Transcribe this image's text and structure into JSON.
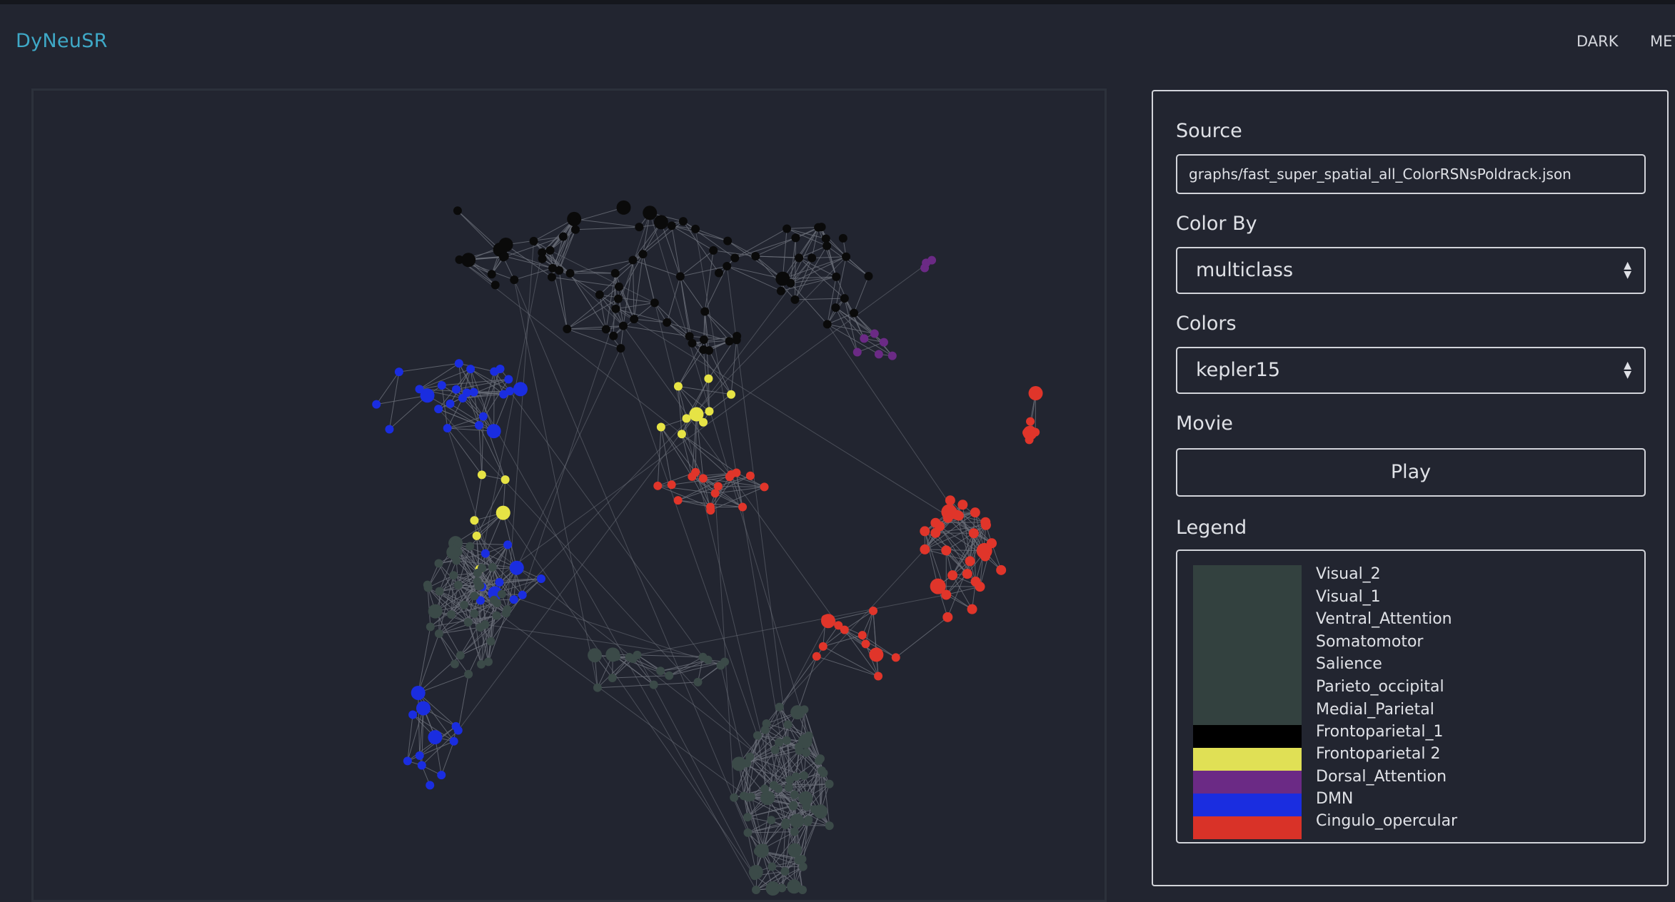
{
  "app": {
    "title": "DyNeuSR"
  },
  "nav": {
    "items": [
      "DARK",
      "MET"
    ]
  },
  "panel": {
    "source_label": "Source",
    "source_value": "graphs/fast_super_spatial_all_ColorRSNsPoldrack.json",
    "color_by_label": "Color By",
    "color_by_value": "multiclass",
    "colors_label": "Colors",
    "colors_value": "kepler15",
    "movie_label": "Movie",
    "play_label": "Play",
    "legend_label": "Legend"
  },
  "legend": {
    "items": [
      {
        "label": "Visual_2",
        "color": "#33413f"
      },
      {
        "label": "Visual_1",
        "color": "#33413f"
      },
      {
        "label": "Ventral_Attention",
        "color": "#33413f"
      },
      {
        "label": "Somatomotor",
        "color": "#33413f"
      },
      {
        "label": "Salience",
        "color": "#33413f"
      },
      {
        "label": "Parieto_occipital",
        "color": "#33413f"
      },
      {
        "label": "Medial_Parietal",
        "color": "#33413f"
      },
      {
        "label": "Frontoparietal_1",
        "color": "#000000"
      },
      {
        "label": "Frontoparietal 2",
        "color": "#e0e055"
      },
      {
        "label": "Dorsal_Attention",
        "color": "#6b2a85"
      },
      {
        "label": "DMN",
        "color": "#1a2de0"
      },
      {
        "label": "Cingulo_opercular",
        "color": "#d93228"
      }
    ]
  },
  "graph": {
    "node_colors": {
      "black": "#0a0a0a",
      "yellow": "#e6e345",
      "purple": "#6b2a85",
      "blue": "#1a2de0",
      "red": "#e0352a",
      "teal": "#3b4a48"
    },
    "edge_color": "#6c707a"
  }
}
